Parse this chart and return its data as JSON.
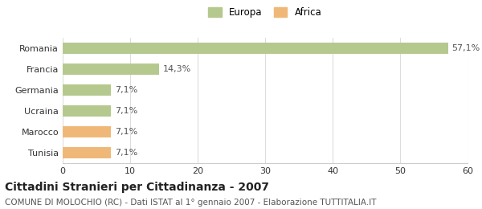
{
  "categories": [
    "Romania",
    "Francia",
    "Germania",
    "Ucraina",
    "Marocco",
    "Tunisia"
  ],
  "values": [
    57.1,
    14.3,
    7.1,
    7.1,
    7.1,
    7.1
  ],
  "labels": [
    "57,1%",
    "14,3%",
    "7,1%",
    "7,1%",
    "7,1%",
    "7,1%"
  ],
  "bar_colors": [
    "#b5c98e",
    "#b5c98e",
    "#b5c98e",
    "#b5c98e",
    "#f0b878",
    "#f0b878"
  ],
  "legend_items": [
    {
      "label": "Europa",
      "color": "#b5c98e"
    },
    {
      "label": "Africa",
      "color": "#f0b878"
    }
  ],
  "xlim": [
    0,
    60
  ],
  "xticks": [
    0,
    10,
    20,
    30,
    40,
    50,
    60
  ],
  "title": "Cittadini Stranieri per Cittadinanza - 2007",
  "subtitle": "COMUNE DI MOLOCHIO (RC) - Dati ISTAT al 1° gennaio 2007 - Elaborazione TUTTITALIA.IT",
  "title_fontsize": 10,
  "subtitle_fontsize": 7.5,
  "background_color": "#ffffff",
  "grid_color": "#dddddd",
  "label_fontsize": 8,
  "tick_fontsize": 8,
  "bar_height": 0.52
}
